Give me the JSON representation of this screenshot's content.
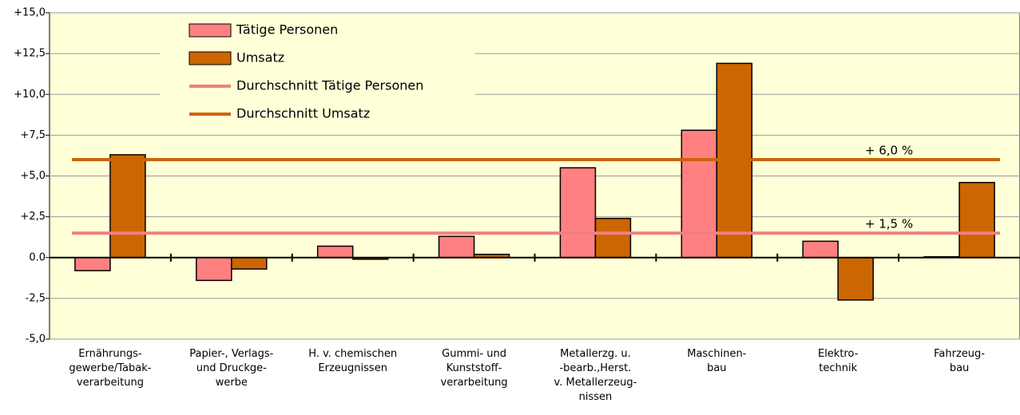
{
  "chart_data": {
    "type": "bar",
    "categories": [
      [
        "Ernährungs-",
        "gewerbe/Tabak-",
        "verarbeitung"
      ],
      [
        "Papier-, Verlags-",
        "und Druckge-",
        "werbe"
      ],
      [
        "H. v. chemischen",
        "Erzeugnissen"
      ],
      [
        "Gummi- und",
        "Kunststoff-",
        "verarbeitung"
      ],
      [
        "Metallerzg. u.",
        "-bearb.,Herst.",
        "v. Metallerzeug-",
        "nissen"
      ],
      [
        "Maschinen-",
        "bau"
      ],
      [
        "Elektro-",
        "technik"
      ],
      [
        "Fahrzeug-",
        "bau"
      ]
    ],
    "series": [
      {
        "name": "Tätige Personen",
        "color": "#ff8080",
        "values": [
          -0.8,
          -1.4,
          0.7,
          1.3,
          5.5,
          7.8,
          1.0,
          0.05
        ]
      },
      {
        "name": "Umsatz",
        "color": "#cc6600",
        "values": [
          6.3,
          -0.7,
          -0.1,
          0.2,
          2.4,
          11.9,
          -2.6,
          4.6
        ]
      }
    ],
    "reference_lines": [
      {
        "name": "Durchschnitt Tätige Personen",
        "color": "#f08080",
        "value": 1.5,
        "value_label": "+ 1,5 %"
      },
      {
        "name": "Durchschnitt Umsatz",
        "color": "#cc6600",
        "value": 6.0,
        "value_label": "+ 6,0 %"
      }
    ],
    "ylim": [
      -5,
      15
    ],
    "yticks": [
      {
        "value": -5,
        "label": "-5,0"
      },
      {
        "value": -2.5,
        "label": "-2,5"
      },
      {
        "value": 0,
        "label": "0.0"
      },
      {
        "value": 2.5,
        "label": "+2,5"
      },
      {
        "value": 5,
        "label": "+5,0"
      },
      {
        "value": 7.5,
        "label": "+7,5"
      },
      {
        "value": 10,
        "label": "+10,0"
      },
      {
        "value": 12.5,
        "label": "+12,5"
      },
      {
        "value": 15,
        "label": "+15,0"
      }
    ],
    "grid": true,
    "legend": "upper-left",
    "background": "#ffffd8"
  }
}
